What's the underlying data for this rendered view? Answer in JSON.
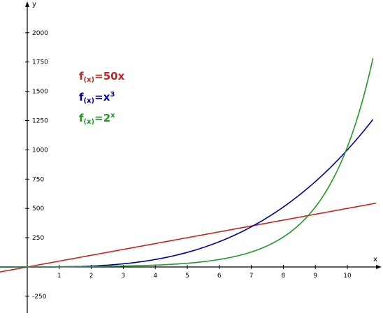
{
  "chart_data": {
    "type": "line",
    "title": "",
    "xlabel": "x",
    "ylabel": "y",
    "xlim": [
      -0.9,
      10.9
    ],
    "ylim": [
      -340,
      2260
    ],
    "x_ticks": [
      "1",
      "2",
      "3",
      "4",
      "5",
      "6",
      "7",
      "8",
      "9",
      "10"
    ],
    "y_ticks": [
      "2000",
      "1750",
      "1500",
      "1250",
      "1000",
      "750",
      "500",
      "250",
      "-250"
    ],
    "grid": false,
    "legend_position": "top-left",
    "series": [
      {
        "name": "f(x)=50x",
        "f": "f",
        "sub": "(x)",
        "rhs": "=50x",
        "sup": "",
        "color": "#cc2222",
        "x": [
          -0.9,
          0,
          1,
          2,
          3,
          4,
          5,
          6,
          7,
          8,
          9,
          10,
          10.9
        ],
        "y": [
          -45,
          0,
          50,
          100,
          150,
          200,
          250,
          300,
          350,
          400,
          450,
          500,
          545
        ]
      },
      {
        "name": "f(x)=x^3",
        "f": "f",
        "sub": "(x)",
        "rhs": "=x",
        "sup": "3",
        "color": "#0000aa",
        "x": [
          -0.9,
          0,
          1,
          2,
          3,
          4,
          5,
          6,
          7,
          8,
          9,
          10,
          10.8
        ],
        "y": [
          -0.7,
          0,
          1,
          8,
          27,
          64,
          125,
          216,
          343,
          512,
          729,
          1000,
          1260
        ]
      },
      {
        "name": "f(x)=2^x",
        "f": "f",
        "sub": "(x)",
        "rhs": "=2",
        "sup": "x",
        "color": "#229922",
        "x": [
          -0.9,
          0,
          1,
          2,
          3,
          4,
          5,
          6,
          7,
          8,
          9,
          10,
          10.8
        ],
        "y": [
          0.54,
          1,
          2,
          4,
          8,
          16,
          32,
          64,
          128,
          256,
          512,
          1024,
          1783
        ]
      }
    ]
  }
}
